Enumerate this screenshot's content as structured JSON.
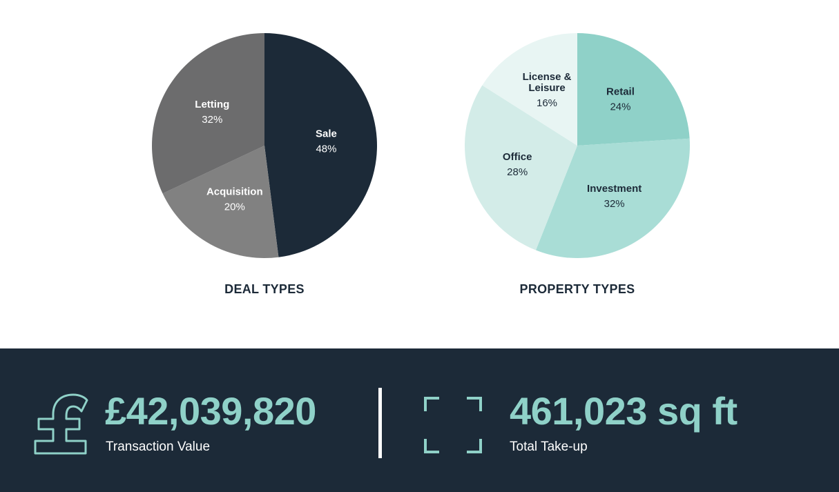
{
  "chart_data": [
    {
      "type": "pie",
      "title": "DEAL TYPES",
      "slices": [
        {
          "label": "Sale",
          "value": 48,
          "display": "48%",
          "color": "#1c2a38",
          "text_color": "#ffffff"
        },
        {
          "label": "Acquisition",
          "value": 20,
          "display": "20%",
          "color": "#818181",
          "text_color": "#ffffff"
        },
        {
          "label": "Letting",
          "value": 32,
          "display": "32%",
          "color": "#6c6c6d",
          "text_color": "#ffffff"
        }
      ]
    },
    {
      "type": "pie",
      "title": "PROPERTY TYPES",
      "slices": [
        {
          "label": "Retail",
          "value": 24,
          "display": "24%",
          "color": "#8fd1c8",
          "text_color": "#1c2a38"
        },
        {
          "label": "Investment",
          "value": 32,
          "display": "32%",
          "color": "#a9ddd6",
          "text_color": "#1c2a38"
        },
        {
          "label": "Office",
          "value": 28,
          "display": "28%",
          "color": "#d3ece8",
          "text_color": "#1c2a38"
        },
        {
          "label": "License & Leisure",
          "value": 16,
          "display": "16%",
          "color": "#e8f5f3",
          "text_color": "#1c2a38"
        }
      ]
    }
  ],
  "stats": {
    "transaction_value": "£42,039,820",
    "transaction_label": "Transaction Value",
    "takeup_value": "461,023 sq ft",
    "takeup_label": "Total Take-up"
  },
  "icons": {
    "currency": "pound-sign-icon",
    "area": "area-corners-icon"
  },
  "colors": {
    "navy": "#1c2a38",
    "accent": "#8fd1c8",
    "white": "#ffffff"
  }
}
